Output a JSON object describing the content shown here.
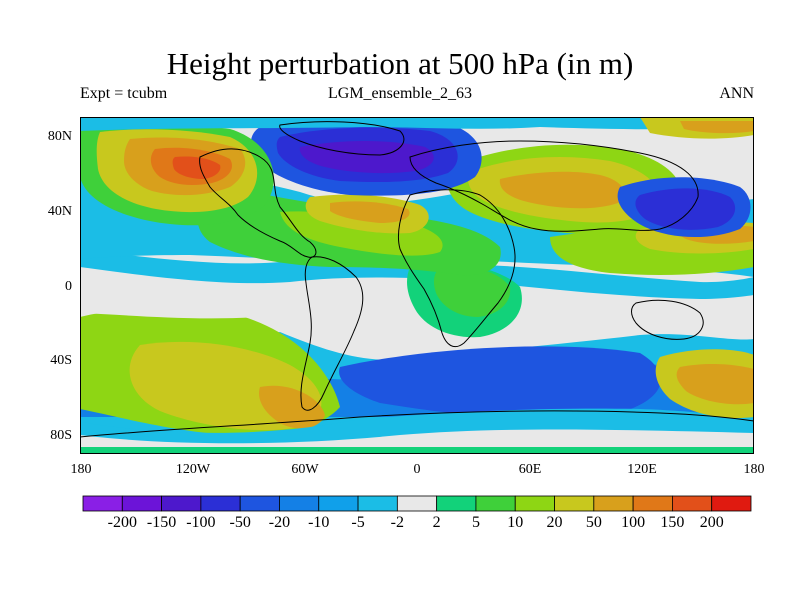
{
  "title": "Height perturbation at 500 hPa (in m)",
  "left_subtitle": "Expt = tcubm",
  "center_subtitle": "LGM_ensemble_2_63",
  "right_subtitle": "ANN",
  "lat_ticks": [
    "80N",
    "40N",
    "0",
    "40S",
    "80S"
  ],
  "lon_ticks": [
    "180",
    "120W",
    "60W",
    "0",
    "60E",
    "120E",
    "180"
  ],
  "colorbar": {
    "labels": [
      "-200",
      "-150",
      "-100",
      "-50",
      "-20",
      "-10",
      "-5",
      "-2",
      "2",
      "5",
      "10",
      "20",
      "50",
      "100",
      "150",
      "200"
    ],
    "colors": [
      "#8a1fe6",
      "#6c14d8",
      "#4d18cc",
      "#2b2fd6",
      "#1e55e0",
      "#1480e6",
      "#10a0ea",
      "#1bbde6",
      "#e8e8e8",
      "#12d27a",
      "#3fd03a",
      "#8ed614",
      "#c8c81e",
      "#d8a01c",
      "#e07818",
      "#e2501a",
      "#e01a10"
    ]
  },
  "map": {
    "extent": {
      "lon": [
        -180,
        180
      ],
      "lat": [
        -90,
        90
      ]
    },
    "background_color": "#e8e8e8"
  }
}
